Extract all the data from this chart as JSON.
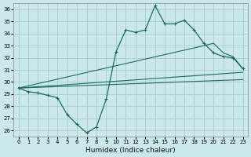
{
  "xlabel": "Humidex (Indice chaleur)",
  "bg_color": "#cce9e9",
  "line_color": "#1a6b60",
  "grid_color": "#aacccc",
  "xlim": [
    -0.5,
    23.5
  ],
  "ylim": [
    25.5,
    36.5
  ],
  "xticks": [
    0,
    1,
    2,
    3,
    4,
    5,
    6,
    7,
    8,
    9,
    10,
    11,
    12,
    13,
    14,
    15,
    16,
    17,
    18,
    19,
    20,
    21,
    22,
    23
  ],
  "yticks": [
    26,
    27,
    28,
    29,
    30,
    31,
    32,
    33,
    34,
    35,
    36
  ],
  "line1_x": [
    0,
    1,
    2,
    3,
    4,
    5,
    6,
    7,
    8,
    9,
    10,
    11,
    12,
    13,
    14,
    15,
    16,
    17,
    18,
    19,
    20,
    21,
    22,
    23
  ],
  "line1_y": [
    29.5,
    29.2,
    29.1,
    28.9,
    28.7,
    27.3,
    26.5,
    25.8,
    26.3,
    28.6,
    32.5,
    34.3,
    34.1,
    34.3,
    36.3,
    34.8,
    34.8,
    35.1,
    34.3,
    33.2,
    32.4,
    32.1,
    32.0,
    31.1
  ],
  "line2_x": [
    0,
    19,
    20,
    21,
    22,
    23
  ],
  "line2_y": [
    29.5,
    33.0,
    33.2,
    32.4,
    32.1,
    31.1
  ],
  "line3_x": [
    0,
    23
  ],
  "line3_y": [
    29.5,
    30.8
  ],
  "line4_x": [
    0,
    23
  ],
  "line4_y": [
    29.5,
    30.2
  ]
}
